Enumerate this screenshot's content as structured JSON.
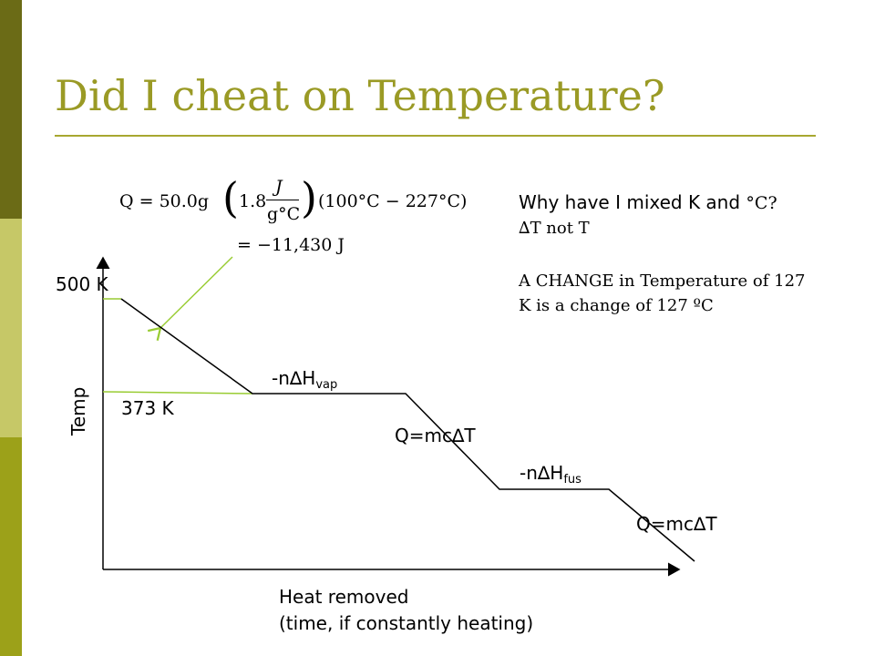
{
  "slide": {
    "title": "Did I cheat on Temperature?"
  },
  "equation": {
    "q_lhs": "Q = 50.0g",
    "numerator": "J",
    "c_value": "1.8",
    "denominator": "g°C",
    "temp_diff": "(100°C − 227°C)",
    "result": "= −11,430 J"
  },
  "notes": {
    "why_prefix": "Why have I mixed K and ",
    "why_unit": "°C?",
    "delta_t": "∆T not T",
    "change_line1": "A  CHANGE in Temperature of 127",
    "change_line2": "K is a change of 127 ºC"
  },
  "graph": {
    "y_label": "Temp",
    "x_label_line1": "Heat removed",
    "x_label_line2": "(time, if constantly heating)",
    "label_500k": "500 K",
    "label_373k": "373 K",
    "vap_prefix": "-n∆H",
    "vap_sub": "vap",
    "qmct_1": "Q=mc∆T",
    "fus_prefix": "-n∆H",
    "fus_sub": "fus",
    "qmct_2": "Q=mc∆T"
  },
  "colors": {
    "title": "#9a9a25",
    "accent_green": "#99cc33",
    "bar_dark": "#6b6b16",
    "bar_light": "#c6c867",
    "bar_mid": "#9ca119"
  }
}
